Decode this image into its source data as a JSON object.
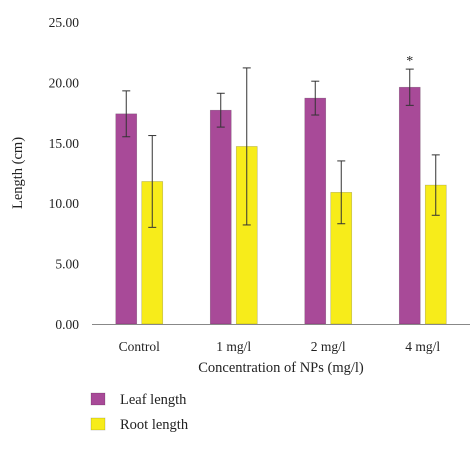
{
  "chart_data": {
    "type": "bar",
    "xlabel": "Concentration of NPs (mg/l)",
    "ylabel": "Length (cm)",
    "ylim": [
      0,
      25
    ],
    "yticks": [
      "0.00",
      "5.00",
      "10.00",
      "15.00",
      "20.00",
      "25.00"
    ],
    "categories": [
      "Control",
      "1 mg/l",
      "2 mg/l",
      "4 mg/l"
    ],
    "series": [
      {
        "name": "Leaf length",
        "color": "#a84a98",
        "values": [
          17.4,
          17.7,
          18.7,
          19.6
        ],
        "errors": [
          1.9,
          1.4,
          1.4,
          1.5
        ]
      },
      {
        "name": "Root length",
        "color": "#f7ec1a",
        "values": [
          11.8,
          14.7,
          10.9,
          11.5
        ],
        "errors": [
          3.8,
          6.5,
          2.6,
          2.5
        ]
      }
    ],
    "annotations": [
      {
        "text": "*",
        "category": "4 mg/l",
        "series": "Leaf length"
      }
    ],
    "grid": false,
    "legend": "bottom-left"
  }
}
